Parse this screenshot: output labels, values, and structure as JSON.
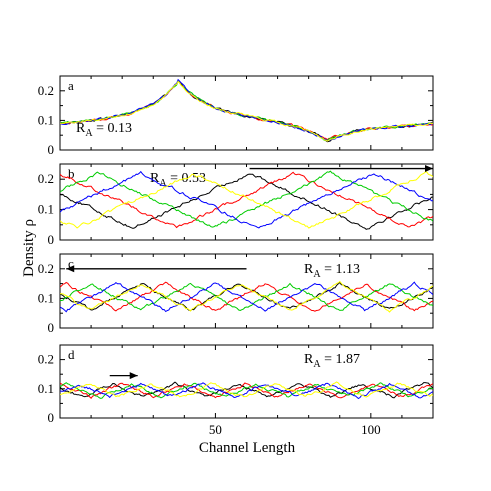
{
  "chart_data": {
    "type": "line",
    "xlabel": "Channel Length",
    "ylabel": "Density ρ",
    "xlim": [
      0,
      120
    ],
    "x_ticks": [
      "50",
      "100"
    ],
    "grid": false,
    "series_colors": [
      "#000000",
      "#ff0000",
      "#00cc00",
      "#0000ff",
      "#ffff00"
    ],
    "panels": [
      {
        "letter": "a",
        "ra_label": "R",
        "ra_sub": "A",
        "ra_value": " = 0.13",
        "ylim": [
          0,
          0.25
        ],
        "y_ticks": [
          "0",
          "0.1",
          "0.2"
        ],
        "mode": "stationary",
        "peak_x": 38,
        "peak_y": 0.22,
        "trough_x": 86,
        "trough_y": 0.04,
        "arrow": null
      },
      {
        "letter": "b",
        "ra_label": "R",
        "ra_sub": "A",
        "ra_value": " = 0.53",
        "ylim": [
          0,
          0.25
        ],
        "y_ticks": [
          "0",
          "0.1",
          "0.2"
        ],
        "mode": "traveling",
        "wavelength": 75,
        "center": 0.13,
        "amp": 0.09,
        "peaks_x": [
          61,
          75,
          87,
          101,
          118
        ],
        "arrow": {
          "from": 61,
          "to": 120,
          "y": 0.235
        }
      },
      {
        "letter": "c",
        "ra_label": "R",
        "ra_sub": "A",
        "ra_value": " = 1.13",
        "ylim": [
          0,
          0.25
        ],
        "y_ticks": [
          "0",
          "0.1",
          "0.2"
        ],
        "mode": "traveling",
        "wavelength": 32,
        "center": 0.105,
        "amp": 0.045,
        "peaks_x": [
          58,
          66,
          74,
          82,
          90
        ],
        "arrow": {
          "from": 60,
          "to": 2,
          "y": 0.2
        }
      },
      {
        "letter": "d",
        "ra_label": "R",
        "ra_sub": "A",
        "ra_value": " = 1.87",
        "ylim": [
          0,
          0.25
        ],
        "y_ticks": [
          "0",
          "0.1",
          "0.2"
        ],
        "mode": "traveling",
        "wavelength": 20,
        "center": 0.095,
        "amp": 0.022,
        "peaks_x": [
          37,
          40,
          43,
          46,
          49
        ],
        "arrow": {
          "from": 16,
          "to": 25,
          "y": 0.145
        }
      }
    ]
  }
}
